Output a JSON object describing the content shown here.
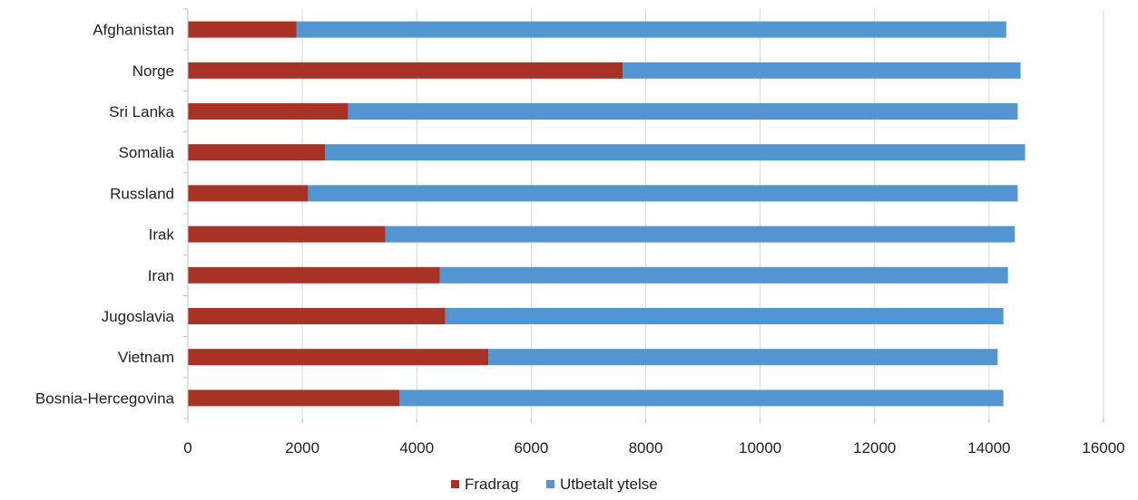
{
  "chart_data": {
    "type": "bar",
    "orientation": "horizontal",
    "stacked": true,
    "categories": [
      "Afghanistan",
      "Norge",
      "Sri Lanka",
      "Somalia",
      "Russland",
      "Irak",
      "Iran",
      "Jugoslavia",
      "Vietnam",
      "Bosnia-Hercegovina"
    ],
    "series": [
      {
        "name": "Fradrag",
        "color": "#a93226",
        "values": [
          1900,
          7600,
          2800,
          2400,
          2100,
          3450,
          4400,
          4500,
          5250,
          3700
        ]
      },
      {
        "name": "Utbetalt ytelse",
        "color": "#5295d0",
        "values": [
          12400,
          6950,
          11700,
          12230,
          12400,
          11000,
          9930,
          9750,
          8900,
          10550
        ]
      }
    ],
    "xlim": [
      0,
      16000
    ],
    "xticks": [
      "0",
      "2000",
      "4000",
      "6000",
      "8000",
      "10000",
      "12000",
      "14000",
      "16000"
    ],
    "grid": "vertical",
    "legend_position": "bottom-center"
  }
}
